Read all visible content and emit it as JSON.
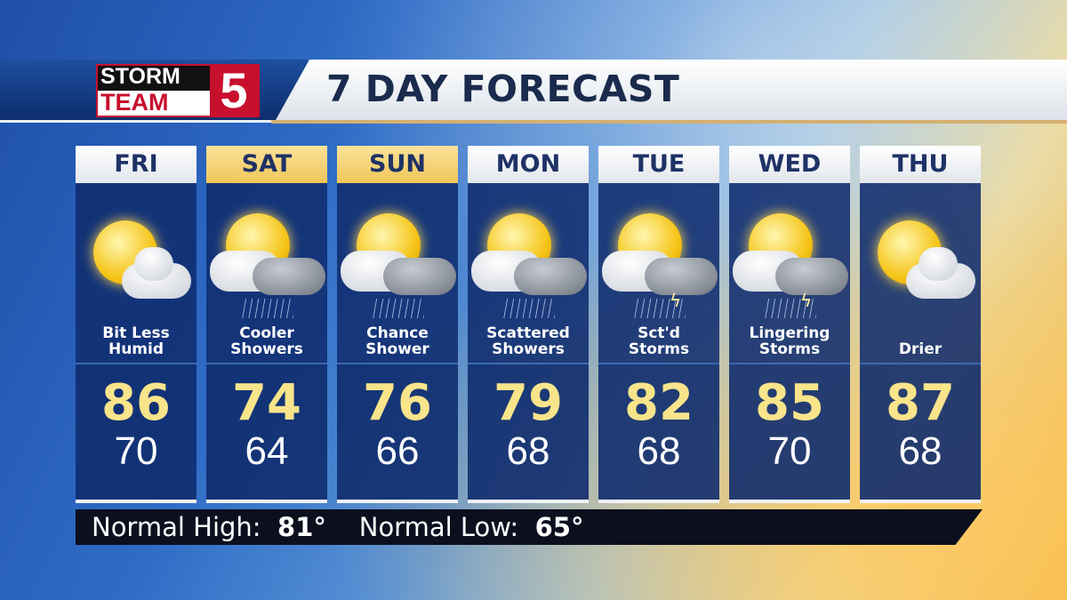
{
  "header": {
    "logo": {
      "line1": "STORM",
      "line2": "TEAM",
      "number": "5"
    },
    "title": "7 DAY FORECAST"
  },
  "days": [
    {
      "day": "FRI",
      "weekend": false,
      "condition": "Bit Less Humid",
      "icon": "sun-cloud",
      "high": "86",
      "low": "70"
    },
    {
      "day": "SAT",
      "weekend": true,
      "condition": "Cooler Showers",
      "icon": "sun-cloud-showers",
      "high": "74",
      "low": "64"
    },
    {
      "day": "SUN",
      "weekend": true,
      "condition": "Chance Shower",
      "icon": "sun-cloud-showers",
      "high": "76",
      "low": "66"
    },
    {
      "day": "MON",
      "weekend": false,
      "condition": "Scattered Showers",
      "icon": "sun-cloud-showers",
      "high": "79",
      "low": "68"
    },
    {
      "day": "TUE",
      "weekend": false,
      "condition": "Sct'd Storms",
      "icon": "sun-cloud-storms",
      "high": "82",
      "low": "68"
    },
    {
      "day": "WED",
      "weekend": false,
      "condition": "Lingering Storms",
      "icon": "sun-cloud-storms",
      "high": "85",
      "low": "70"
    },
    {
      "day": "THU",
      "weekend": false,
      "condition": "Drier",
      "icon": "sun-cloud",
      "high": "87",
      "low": "68"
    }
  ],
  "normals": {
    "high_label": "Normal High:",
    "high": "81°",
    "low_label": "Normal Low:",
    "low": "65°"
  }
}
